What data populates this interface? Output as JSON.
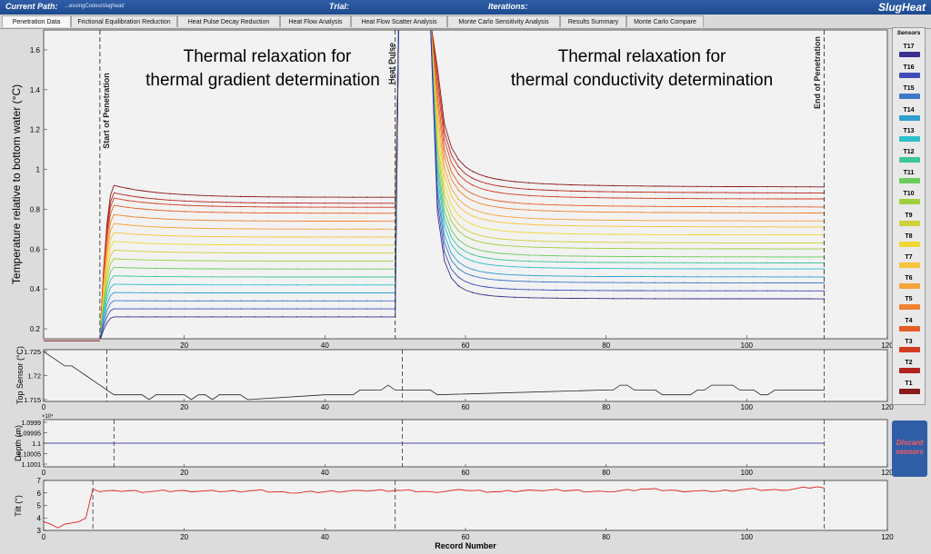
{
  "header": {
    "current_path_label": "Current Path:",
    "current_path_value": "...essingCodes/slugheat/",
    "trial_label": "Trial:",
    "iterations_label": "Iterations:",
    "app_name": "SlugHeat"
  },
  "tabs": [
    {
      "label": "Penetration Data",
      "active": true
    },
    {
      "label": "Frictional Equilibration Reduction"
    },
    {
      "label": "Heat Pulse Decay Reduction"
    },
    {
      "label": "Heat Flow Analysis"
    },
    {
      "label": "Heat Flow Scatter Analysis"
    },
    {
      "label": "Monte Carlo Sensitivity Analysis"
    },
    {
      "label": "Results Summary"
    },
    {
      "label": "Monte Carlo Compare"
    }
  ],
  "legend": {
    "title": "Sensors",
    "items": [
      {
        "name": "T17",
        "color": "#3a2f8f"
      },
      {
        "name": "T16",
        "color": "#3f4cb8"
      },
      {
        "name": "T15",
        "color": "#3d78c6"
      },
      {
        "name": "T14",
        "color": "#2f9fd1"
      },
      {
        "name": "T13",
        "color": "#2fbfc9"
      },
      {
        "name": "T12",
        "color": "#3cc69a"
      },
      {
        "name": "T11",
        "color": "#6ccb5e"
      },
      {
        "name": "T10",
        "color": "#9fcf3e"
      },
      {
        "name": "T9",
        "color": "#cfd13a"
      },
      {
        "name": "T8",
        "color": "#efd734"
      },
      {
        "name": "T7",
        "color": "#f7c43a"
      },
      {
        "name": "T6",
        "color": "#f6a33a"
      },
      {
        "name": "T5",
        "color": "#f0822f"
      },
      {
        "name": "T4",
        "color": "#e45d26"
      },
      {
        "name": "T3",
        "color": "#d23c22"
      },
      {
        "name": "T2",
        "color": "#b5231f"
      },
      {
        "name": "T1",
        "color": "#8a1a1a"
      }
    ]
  },
  "discard_button": {
    "line1": "Discard",
    "line2": "sensors"
  },
  "annotations": {
    "left_title_1": "Thermal relaxation for",
    "left_title_2": "thermal gradient determination",
    "right_title_1": "Thermal relaxation for",
    "right_title_2": "thermal conductivity determination",
    "start_label": "Start of Penetration",
    "pulse_label": "Heat Pulse",
    "end_label": "End of Penetration"
  },
  "main_plot": {
    "ylabel": "Temperature relative to bottom water (°C)",
    "yticks": [
      "0.2",
      "0.4",
      "0.6",
      "0.8",
      "1",
      "1.2",
      "1.4",
      "1.6"
    ],
    "xticks": [
      "20",
      "40",
      "60",
      "80",
      "100",
      "120"
    ],
    "markers_x": [
      8,
      50,
      111
    ]
  },
  "top_sensor_plot": {
    "ylabel": "Top Sensor (°C)",
    "yticks": [
      "1.715",
      "1.72",
      "1.725"
    ],
    "xticks": [
      "0",
      "20",
      "40",
      "60",
      "80",
      "100",
      "120"
    ]
  },
  "depth_plot": {
    "ylabel": "Depth (m)",
    "exponent": "×10⁴",
    "yticks": [
      "1.0999",
      "1.09995",
      "1.1",
      "1.10005",
      "1.1001"
    ],
    "xticks": [
      "0",
      "20",
      "40",
      "60",
      "80",
      "100",
      "120"
    ]
  },
  "tilt_plot": {
    "ylabel": "Tilt (°)",
    "yticks": [
      "3",
      "4",
      "5",
      "6",
      "7"
    ],
    "xticks": [
      "0",
      "20",
      "40",
      "60",
      "80",
      "100",
      "120"
    ],
    "xlabel": "Record Number"
  },
  "chart_data": {
    "type": "line",
    "x_range": [
      0,
      120
    ],
    "main": {
      "ylim": [
        0.15,
        1.7
      ],
      "sensor_order": [
        "T1",
        "T2",
        "T3",
        "T4",
        "T5",
        "T6",
        "T7",
        "T8",
        "T9",
        "T10",
        "T11",
        "T12",
        "T13",
        "T14",
        "T15",
        "T16",
        "T17"
      ],
      "plateau_at_48": [
        0.86,
        0.83,
        0.81,
        0.78,
        0.74,
        0.7,
        0.66,
        0.62,
        0.58,
        0.54,
        0.5,
        0.46,
        0.42,
        0.38,
        0.34,
        0.3,
        0.26
      ],
      "decay_end_at_111": [
        0.91,
        0.88,
        0.85,
        0.81,
        0.78,
        0.74,
        0.71,
        0.67,
        0.63,
        0.6,
        0.56,
        0.53,
        0.5,
        0.46,
        0.43,
        0.39,
        0.35
      ]
    },
    "top_sensor": {
      "ylim": [
        1.715,
        1.725
      ],
      "x": [
        0,
        1,
        2,
        3,
        4,
        5,
        6,
        7,
        8,
        9,
        10,
        14,
        15,
        16,
        17,
        20,
        21,
        22,
        23,
        24,
        25,
        28,
        29,
        40,
        41,
        42,
        43,
        44,
        45,
        48,
        49,
        50,
        51,
        55,
        56,
        80,
        81,
        82,
        83,
        84,
        87,
        88,
        92,
        93,
        94,
        95,
        98,
        99,
        100,
        101,
        102,
        103,
        104,
        105,
        111
      ],
      "y": [
        1.725,
        1.724,
        1.723,
        1.722,
        1.722,
        1.721,
        1.72,
        1.719,
        1.718,
        1.717,
        1.716,
        1.716,
        1.715,
        1.716,
        1.716,
        1.716,
        1.715,
        1.716,
        1.716,
        1.715,
        1.716,
        1.716,
        1.715,
        1.716,
        1.716,
        1.716,
        1.716,
        1.716,
        1.717,
        1.717,
        1.718,
        1.717,
        1.717,
        1.717,
        1.716,
        1.717,
        1.717,
        1.718,
        1.718,
        1.717,
        1.717,
        1.716,
        1.716,
        1.717,
        1.717,
        1.718,
        1.718,
        1.717,
        1.717,
        1.717,
        1.716,
        1.716,
        1.717,
        1.717,
        1.717
      ]
    },
    "depth": {
      "ylim": [
        1.0999,
        1.1001
      ],
      "value": 1.1
    },
    "tilt": {
      "ylim": [
        3,
        7
      ],
      "x": [
        0,
        1,
        2,
        3,
        4,
        5,
        6,
        7,
        8,
        10,
        15,
        20,
        25,
        30,
        35,
        40,
        45,
        50,
        55,
        60,
        65,
        70,
        75,
        80,
        85,
        90,
        95,
        100,
        105,
        110,
        111
      ],
      "y": [
        3.7,
        3.5,
        3.2,
        3.5,
        3.6,
        3.7,
        4.0,
        6.3,
        6.1,
        6.2,
        6.1,
        6.2,
        6.1,
        6.2,
        6.0,
        6.1,
        6.2,
        6.2,
        6.1,
        6.2,
        6.1,
        6.2,
        6.2,
        6.1,
        6.3,
        6.2,
        6.1,
        6.3,
        6.2,
        6.5,
        6.4
      ]
    }
  }
}
